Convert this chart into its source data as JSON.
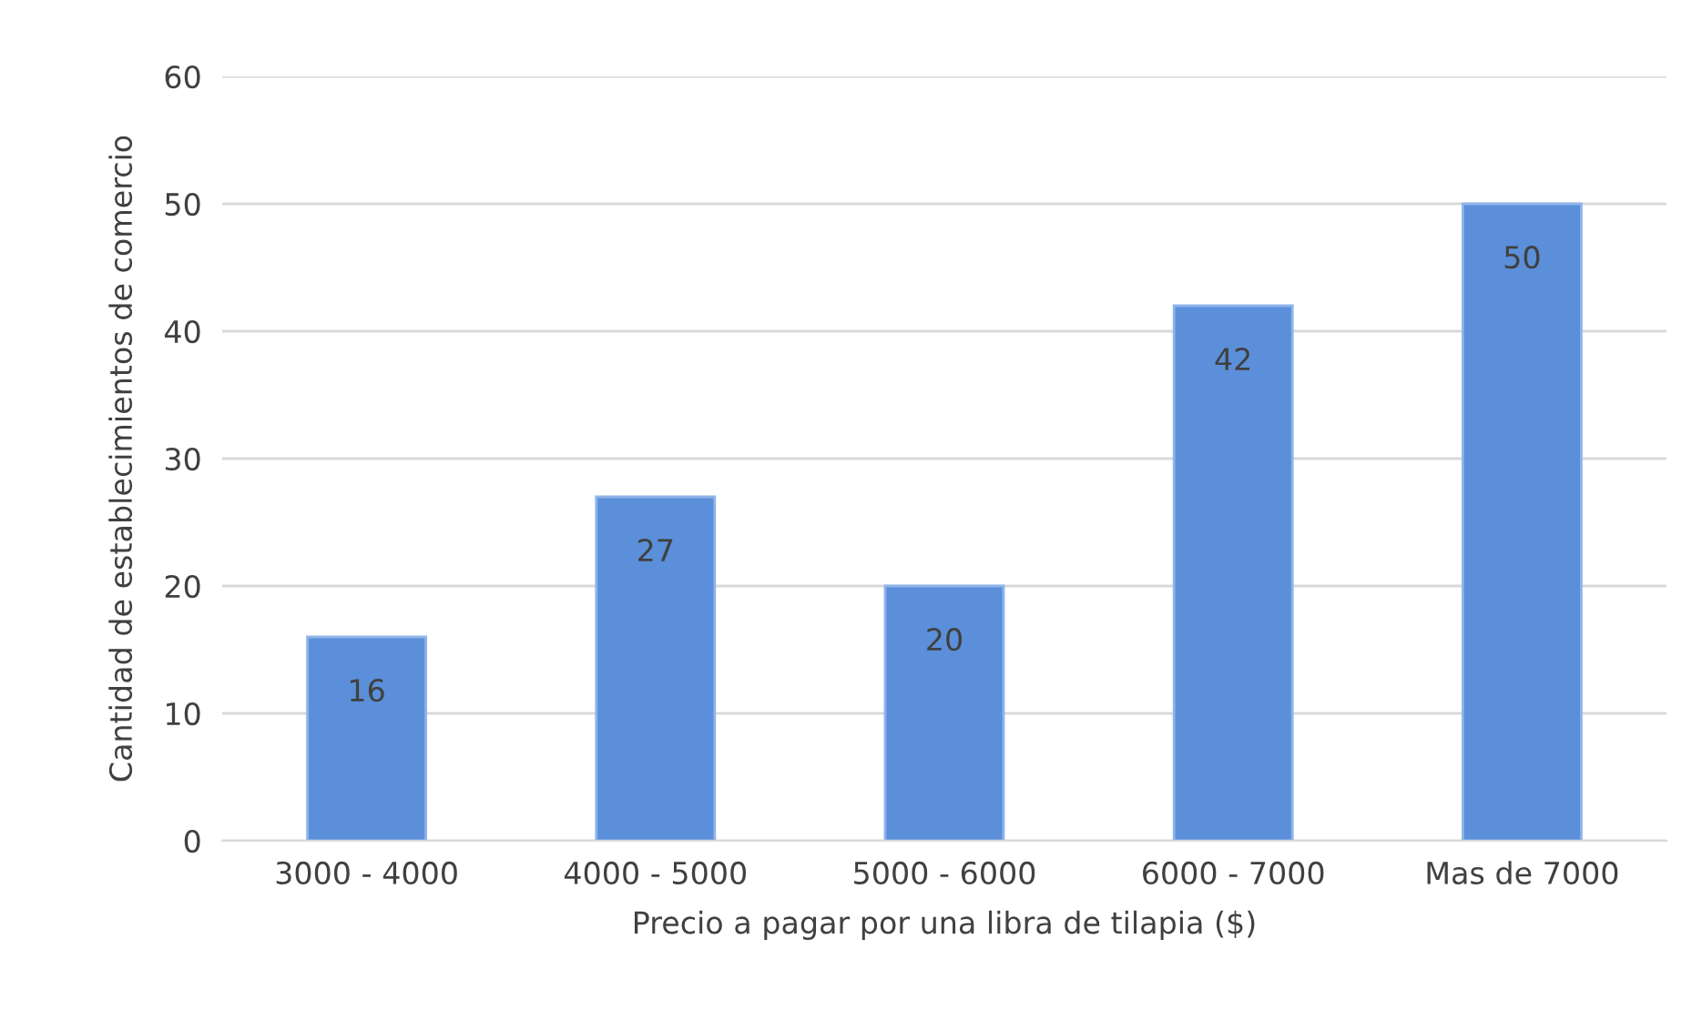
{
  "chart_data": {
    "type": "bar",
    "xlabel": "Precio a pagar por una libra de tilapia ($)",
    "ylabel": "Cantidad de establecimientos de comercio",
    "categories": [
      "3000 - 4000",
      "4000 - 5000",
      "5000 - 6000",
      "6000 - 7000",
      "Mas de 7000"
    ],
    "values": [
      16,
      27,
      20,
      42,
      50
    ],
    "color": "#5b8fd9",
    "ylim": [
      0,
      60
    ],
    "yticks": [
      0,
      10,
      20,
      30,
      40,
      50,
      60
    ],
    "grid": "y",
    "data_labels": true
  }
}
